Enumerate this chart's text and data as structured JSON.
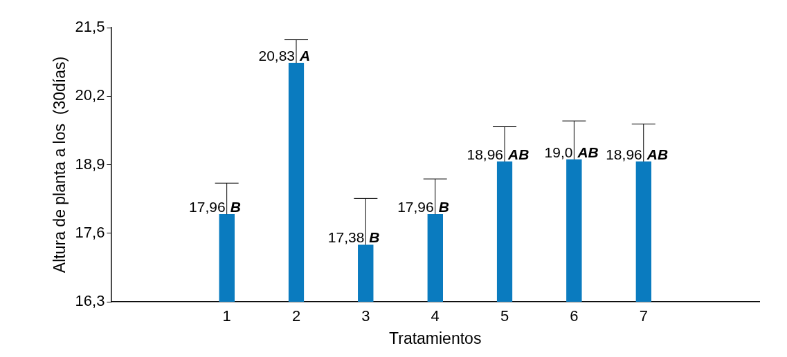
{
  "chart_data": {
    "type": "bar",
    "xlabel": "Tratamientos",
    "ylabel": "Altura de planta a los  (30días)",
    "categories": [
      "1",
      "2",
      "3",
      "4",
      "5",
      "6",
      "7"
    ],
    "values": [
      17.96,
      20.83,
      17.38,
      17.96,
      18.96,
      19.0,
      18.96
    ],
    "value_labels": [
      "17,96",
      "20,83",
      "17,38",
      "17,96",
      "18,96",
      "19,0",
      "18,96"
    ],
    "errors": [
      [
        17.96,
        18.55
      ],
      [
        20.83,
        21.27
      ],
      [
        17.38,
        18.26
      ],
      [
        17.96,
        18.63
      ],
      [
        18.96,
        19.62
      ],
      [
        19.0,
        19.73
      ],
      [
        18.96,
        19.67
      ]
    ],
    "color": "#0a7bbf",
    "ylim": [
      16.3,
      21.5
    ],
    "yticks": [
      {
        "value": 16.3,
        "label": "16,3"
      },
      {
        "value": 17.6,
        "label": "17,6"
      },
      {
        "value": 18.9,
        "label": "18,9"
      },
      {
        "value": 20.2,
        "label": "20,2"
      },
      {
        "value": 21.5,
        "label": "21,5"
      }
    ],
    "grid": false,
    "legend": false,
    "annotations": [
      {
        "text": "B",
        "x": "1",
        "y": 17.96
      },
      {
        "text": "A",
        "x": "2",
        "y": 20.83
      },
      {
        "text": "B",
        "x": "3",
        "y": 17.38
      },
      {
        "text": "B",
        "x": "4",
        "y": 17.96
      },
      {
        "text": "AB",
        "x": "5",
        "y": 18.96
      },
      {
        "text": "AB",
        "x": "6",
        "y": 19.0
      },
      {
        "text": "AB",
        "x": "7",
        "y": 18.96
      }
    ]
  }
}
